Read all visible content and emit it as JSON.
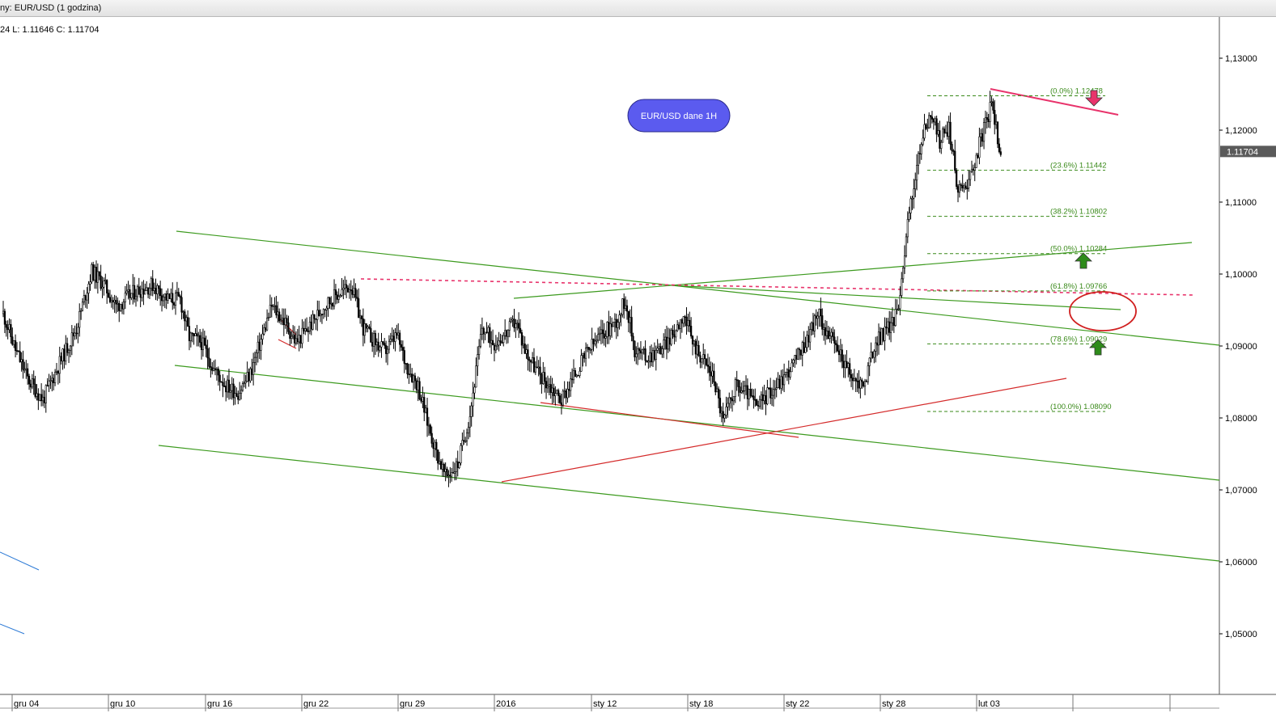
{
  "window": {
    "title": "ny: EUR/USD (1 godzina)"
  },
  "ohlc_readout": "24 L: 1.11646 C: 1.11704",
  "label_box": {
    "text": "EUR/USD dane 1H",
    "color": "#5b5bef"
  },
  "colors": {
    "candle": "#000000",
    "trend_green": "#3c9a1e",
    "trend_red": "#d42a2a",
    "resistance_pink": "#e8336b",
    "fib": "#3a8a1a",
    "ellipse": "#d01f1f",
    "axis_blue": "#2e7bd6"
  },
  "icons": [
    "arrow-down-icon",
    "arrow-up-icon",
    "arrow-up-icon"
  ],
  "chart_data": {
    "type": "candlestick",
    "instrument": "EUR/USD",
    "timeframe": "1H",
    "ylim": [
      1.045,
      1.1345
    ],
    "y_ticks": [
      "1,13000",
      "1,12000",
      "1,11000",
      "1,10000",
      "1,09000",
      "1,08000",
      "1,07000",
      "1,06000",
      "1,05000"
    ],
    "y_tick_values": [
      1.13,
      1.12,
      1.11,
      1.1,
      1.09,
      1.08,
      1.07,
      1.06,
      1.05
    ],
    "x_ticks": [
      "gru 04",
      "gru 10",
      "gru 16",
      "gru 22",
      "gru 29",
      "2016",
      "sty 12",
      "sty 18",
      "sty 22",
      "sty 28",
      "lut 03"
    ],
    "current_price": "1.11704",
    "current_price_value": 1.11704,
    "fibonacci": [
      {
        "label": "(0.0%) 1.12478",
        "value": 1.12478
      },
      {
        "label": "(23.6%) 1.11442",
        "value": 1.11442
      },
      {
        "label": "(38.2%) 1.10802",
        "value": 1.10802
      },
      {
        "label": "(50.0%) 1.10284",
        "value": 1.10284
      },
      {
        "label": "(61.8%) 1.09766",
        "value": 1.09766
      },
      {
        "label": "(78.6%) 1.09029",
        "value": 1.09029
      },
      {
        "label": "(100.0%) 1.08090",
        "value": 1.0809
      }
    ],
    "price_path": [
      [
        0,
        1.0945
      ],
      [
        4,
        1.0895
      ],
      [
        8,
        1.0855
      ],
      [
        13,
        1.0825
      ],
      [
        18,
        1.0872
      ],
      [
        24,
        1.0925
      ],
      [
        29,
        1.1004
      ],
      [
        33,
        1.0985
      ],
      [
        37,
        1.0955
      ],
      [
        43,
        1.0975
      ],
      [
        49,
        1.0985
      ],
      [
        54,
        1.0965
      ],
      [
        58,
        1.0965
      ],
      [
        61,
        1.0912
      ],
      [
        65,
        1.0905
      ],
      [
        69,
        1.0868
      ],
      [
        73,
        1.0845
      ],
      [
        77,
        1.0835
      ],
      [
        81,
        1.0862
      ],
      [
        85,
        1.0915
      ],
      [
        88,
        1.0955
      ],
      [
        92,
        1.0935
      ],
      [
        96,
        1.0905
      ],
      [
        100,
        1.0925
      ],
      [
        105,
        1.0955
      ],
      [
        109,
        1.097
      ],
      [
        114,
        1.0985
      ],
      [
        118,
        1.0925
      ],
      [
        122,
        1.0905
      ],
      [
        125,
        1.0892
      ],
      [
        129,
        1.0915
      ],
      [
        132,
        1.0875
      ],
      [
        136,
        1.0845
      ],
      [
        139,
        1.0795
      ],
      [
        142,
        1.0752
      ],
      [
        145,
        1.0718
      ],
      [
        149,
        1.0735
      ],
      [
        153,
        1.0805
      ],
      [
        157,
        1.0925
      ],
      [
        161,
        1.0905
      ],
      [
        165,
        1.0918
      ],
      [
        168,
        1.0935
      ],
      [
        171,
        1.0895
      ],
      [
        175,
        1.0865
      ],
      [
        179,
        1.0845
      ],
      [
        183,
        1.0825
      ],
      [
        187,
        1.0858
      ],
      [
        192,
        1.0895
      ],
      [
        196,
        1.0915
      ],
      [
        201,
        1.0935
      ],
      [
        204,
        1.0965
      ],
      [
        207,
        1.0895
      ],
      [
        211,
        1.0885
      ],
      [
        215,
        1.0895
      ],
      [
        219,
        1.0912
      ],
      [
        223,
        1.0945
      ],
      [
        226,
        1.0905
      ],
      [
        230,
        1.0878
      ],
      [
        233,
        1.0855
      ],
      [
        236,
        1.0795
      ],
      [
        240,
        1.0845
      ],
      [
        244,
        1.0835
      ],
      [
        247,
        1.0815
      ],
      [
        251,
        1.0835
      ],
      [
        255,
        1.0852
      ],
      [
        259,
        1.0875
      ],
      [
        263,
        1.0905
      ],
      [
        267,
        1.0945
      ],
      [
        271,
        1.0912
      ],
      [
        275,
        1.0885
      ],
      [
        278,
        1.0855
      ],
      [
        282,
        1.0845
      ],
      [
        286,
        1.0905
      ],
      [
        290,
        1.0925
      ],
      [
        293,
        1.0945
      ],
      [
        297,
        1.1085
      ],
      [
        301,
        1.1185
      ],
      [
        304,
        1.1225
      ],
      [
        307,
        1.1185
      ],
      [
        310,
        1.1205
      ],
      [
        313,
        1.1115
      ],
      [
        317,
        1.1135
      ],
      [
        321,
        1.1195
      ],
      [
        324,
        1.1235
      ],
      [
        327,
        1.117
      ]
    ]
  }
}
